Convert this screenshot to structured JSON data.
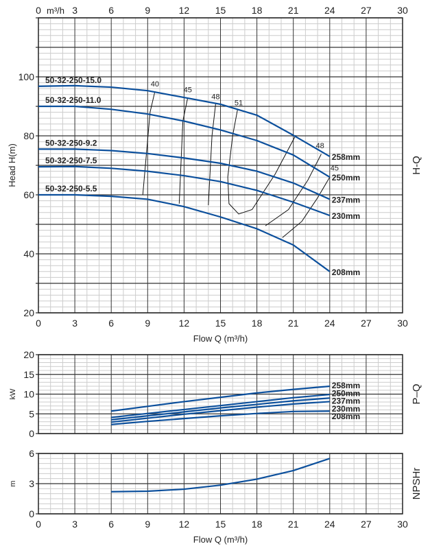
{
  "chart_data": [
    {
      "type": "line",
      "name": "H-Q",
      "title": "H-Q",
      "xlabel": "Flow Q (m³/h)",
      "top_unit": "m³/h",
      "ylabel": "Head H(m)",
      "xlim": [
        0,
        30
      ],
      "ylim": [
        20,
        120
      ],
      "xticks": [
        0,
        3,
        6,
        9,
        12,
        15,
        18,
        21,
        24,
        27,
        30
      ],
      "yticks": [
        20,
        40,
        60,
        80,
        100
      ],
      "grid": true,
      "x": [
        0,
        3,
        6,
        9,
        12,
        15,
        18,
        21,
        24
      ],
      "series": [
        {
          "name": "258mm",
          "model": "50-32-250-15.0",
          "values": [
            96.8,
            97,
            96.5,
            95.3,
            93,
            90.7,
            87,
            80.2,
            73
          ]
        },
        {
          "name": "250mm",
          "model": "50-32-250-11.0",
          "values": [
            90,
            90,
            89,
            87.4,
            85,
            82,
            78.4,
            73.5,
            66
          ]
        },
        {
          "name": "237mm",
          "model": "50-32-250-9.2",
          "values": [
            75.5,
            75.5,
            75,
            74,
            72.5,
            70.7,
            68,
            64,
            58.5
          ]
        },
        {
          "name": "230mm",
          "model": "50-32-250-7.5",
          "values": [
            69.5,
            69.6,
            69,
            68,
            66.5,
            64.5,
            61.5,
            57.5,
            53
          ]
        },
        {
          "name": "208mm",
          "model": "50-32-250-5.5",
          "values": [
            60,
            60,
            59.5,
            58.5,
            56,
            52.5,
            48.5,
            43,
            34
          ]
        }
      ],
      "efficiency_curves": [
        {
          "label": "40",
          "points": [
            [
              9.6,
              95.1
            ],
            [
              9.2,
              88
            ],
            [
              8.6,
              60
            ]
          ],
          "label_at": [
            9.6,
            96.8
          ]
        },
        {
          "label": "45",
          "points": [
            [
              12.3,
              92.9
            ],
            [
              11.9,
              85
            ],
            [
              11.6,
              57
            ]
          ],
          "label_at": [
            12.3,
            94.8
          ]
        },
        {
          "label": "48",
          "points": [
            [
              14.6,
              90.8
            ],
            [
              14.3,
              80
            ],
            [
              14.0,
              56.5
            ]
          ],
          "label_at": [
            14.6,
            92.5
          ]
        },
        {
          "label": "51",
          "points": [
            [
              16.4,
              88.8
            ],
            [
              16,
              80
            ],
            [
              15.6,
              66
            ],
            [
              15.7,
              57
            ],
            [
              16.5,
              53.5
            ],
            [
              17.6,
              55
            ],
            [
              19.5,
              67
            ],
            [
              21.2,
              80.2
            ]
          ],
          "label_at": [
            16.5,
            90.3
          ]
        },
        {
          "label": "48",
          "points": [
            [
              23.3,
              73.8
            ],
            [
              22.2,
              65
            ],
            [
              20.6,
              55
            ],
            [
              18.7,
              49.5
            ]
          ],
          "label_at": [
            23.2,
            75.8
          ]
        },
        {
          "label": "45",
          "points": [
            [
              24,
              66
            ],
            [
              23,
              59
            ],
            [
              21.7,
              51
            ],
            [
              20.1,
              45.5
            ]
          ],
          "label_at": [
            24.4,
            68.3
          ]
        }
      ]
    },
    {
      "type": "line",
      "name": "P-Q",
      "title": "P–Q",
      "ylabel": "kW",
      "xlim": [
        0,
        30
      ],
      "ylim": [
        0,
        20
      ],
      "yticks": [
        0,
        5,
        10,
        15,
        20
      ],
      "grid": true,
      "x": [
        6,
        9,
        12,
        15,
        18,
        21,
        24
      ],
      "series": [
        {
          "name": "258mm",
          "values": [
            5.7,
            6.9,
            8.1,
            9.2,
            10.3,
            11.2,
            12
          ]
        },
        {
          "name": "250mm",
          "values": [
            4.1,
            5.1,
            6.1,
            7.1,
            8.1,
            9.1,
            9.9
          ]
        },
        {
          "name": "237mm",
          "values": [
            3.5,
            4.5,
            5.5,
            6.5,
            7.4,
            8.3,
            9.0
          ]
        },
        {
          "name": "230mm",
          "values": [
            2.9,
            3.9,
            4.9,
            5.8,
            6.7,
            7.5,
            8.1
          ]
        },
        {
          "name": "208mm",
          "values": [
            2.3,
            3.1,
            3.8,
            4.5,
            5.1,
            5.6,
            5.7
          ]
        }
      ]
    },
    {
      "type": "line",
      "name": "NPSHr",
      "title": "NPSHr",
      "xlabel": "Flow Q (m³/h)",
      "ylabel": "m",
      "xlim": [
        0,
        30
      ],
      "ylim": [
        0,
        6
      ],
      "xticks": [
        0,
        3,
        6,
        9,
        12,
        15,
        18,
        21,
        24,
        27,
        30
      ],
      "yticks": [
        0,
        3,
        6
      ],
      "grid": true,
      "x": [
        6,
        9,
        12,
        15,
        18,
        21,
        24
      ],
      "series": [
        {
          "name": "NPSHr",
          "values": [
            2.2,
            2.25,
            2.45,
            2.85,
            3.45,
            4.3,
            5.5
          ]
        }
      ]
    }
  ],
  "colors": {
    "curve": "#0b4f9c",
    "major_grid": "#333333",
    "minor_grid": "#cccccc"
  }
}
